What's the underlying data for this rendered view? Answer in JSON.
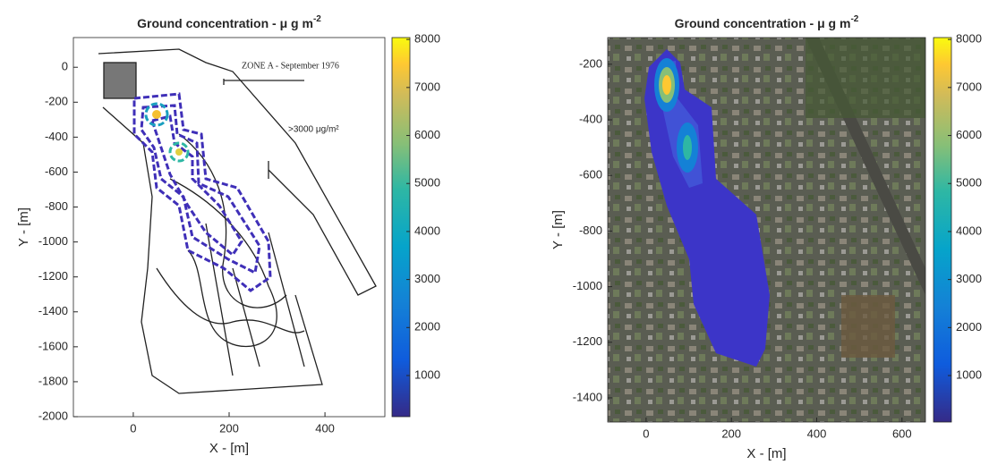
{
  "chart_data": [
    {
      "type": "contour",
      "title": "Ground concentration - μ g m",
      "title_superscript": "-2",
      "xlabel": "X - [m]",
      "ylabel": "Y - [m]",
      "xlim": [
        -125,
        525
      ],
      "xticks": [
        0,
        200,
        400
      ],
      "ylim": [
        -2000,
        170
      ],
      "yticks": [
        0,
        -200,
        -400,
        -600,
        -800,
        -1000,
        -1200,
        -1400,
        -1600,
        -1800,
        -2000
      ],
      "clim": [
        143,
        8040
      ],
      "cticks": [
        1000,
        2000,
        3000,
        4000,
        5000,
        6000,
        7000,
        8000
      ]
    },
    {
      "type": "contour",
      "title": "Ground concentration - μ g m",
      "title_superscript": "-2",
      "xlabel": "X - [m]",
      "ylabel": "Y - [m]",
      "xlim": [
        -90,
        655
      ],
      "xticks": [
        0,
        200,
        400,
        600
      ],
      "ylim": [
        -1487,
        -104
      ],
      "yticks": [
        -200,
        -400,
        -600,
        -800,
        -1000,
        -1200,
        -1400
      ],
      "clim": [
        32,
        8040
      ],
      "cticks": [
        1000,
        2000,
        3000,
        4000,
        5000,
        6000,
        7000,
        8000
      ]
    }
  ]
}
